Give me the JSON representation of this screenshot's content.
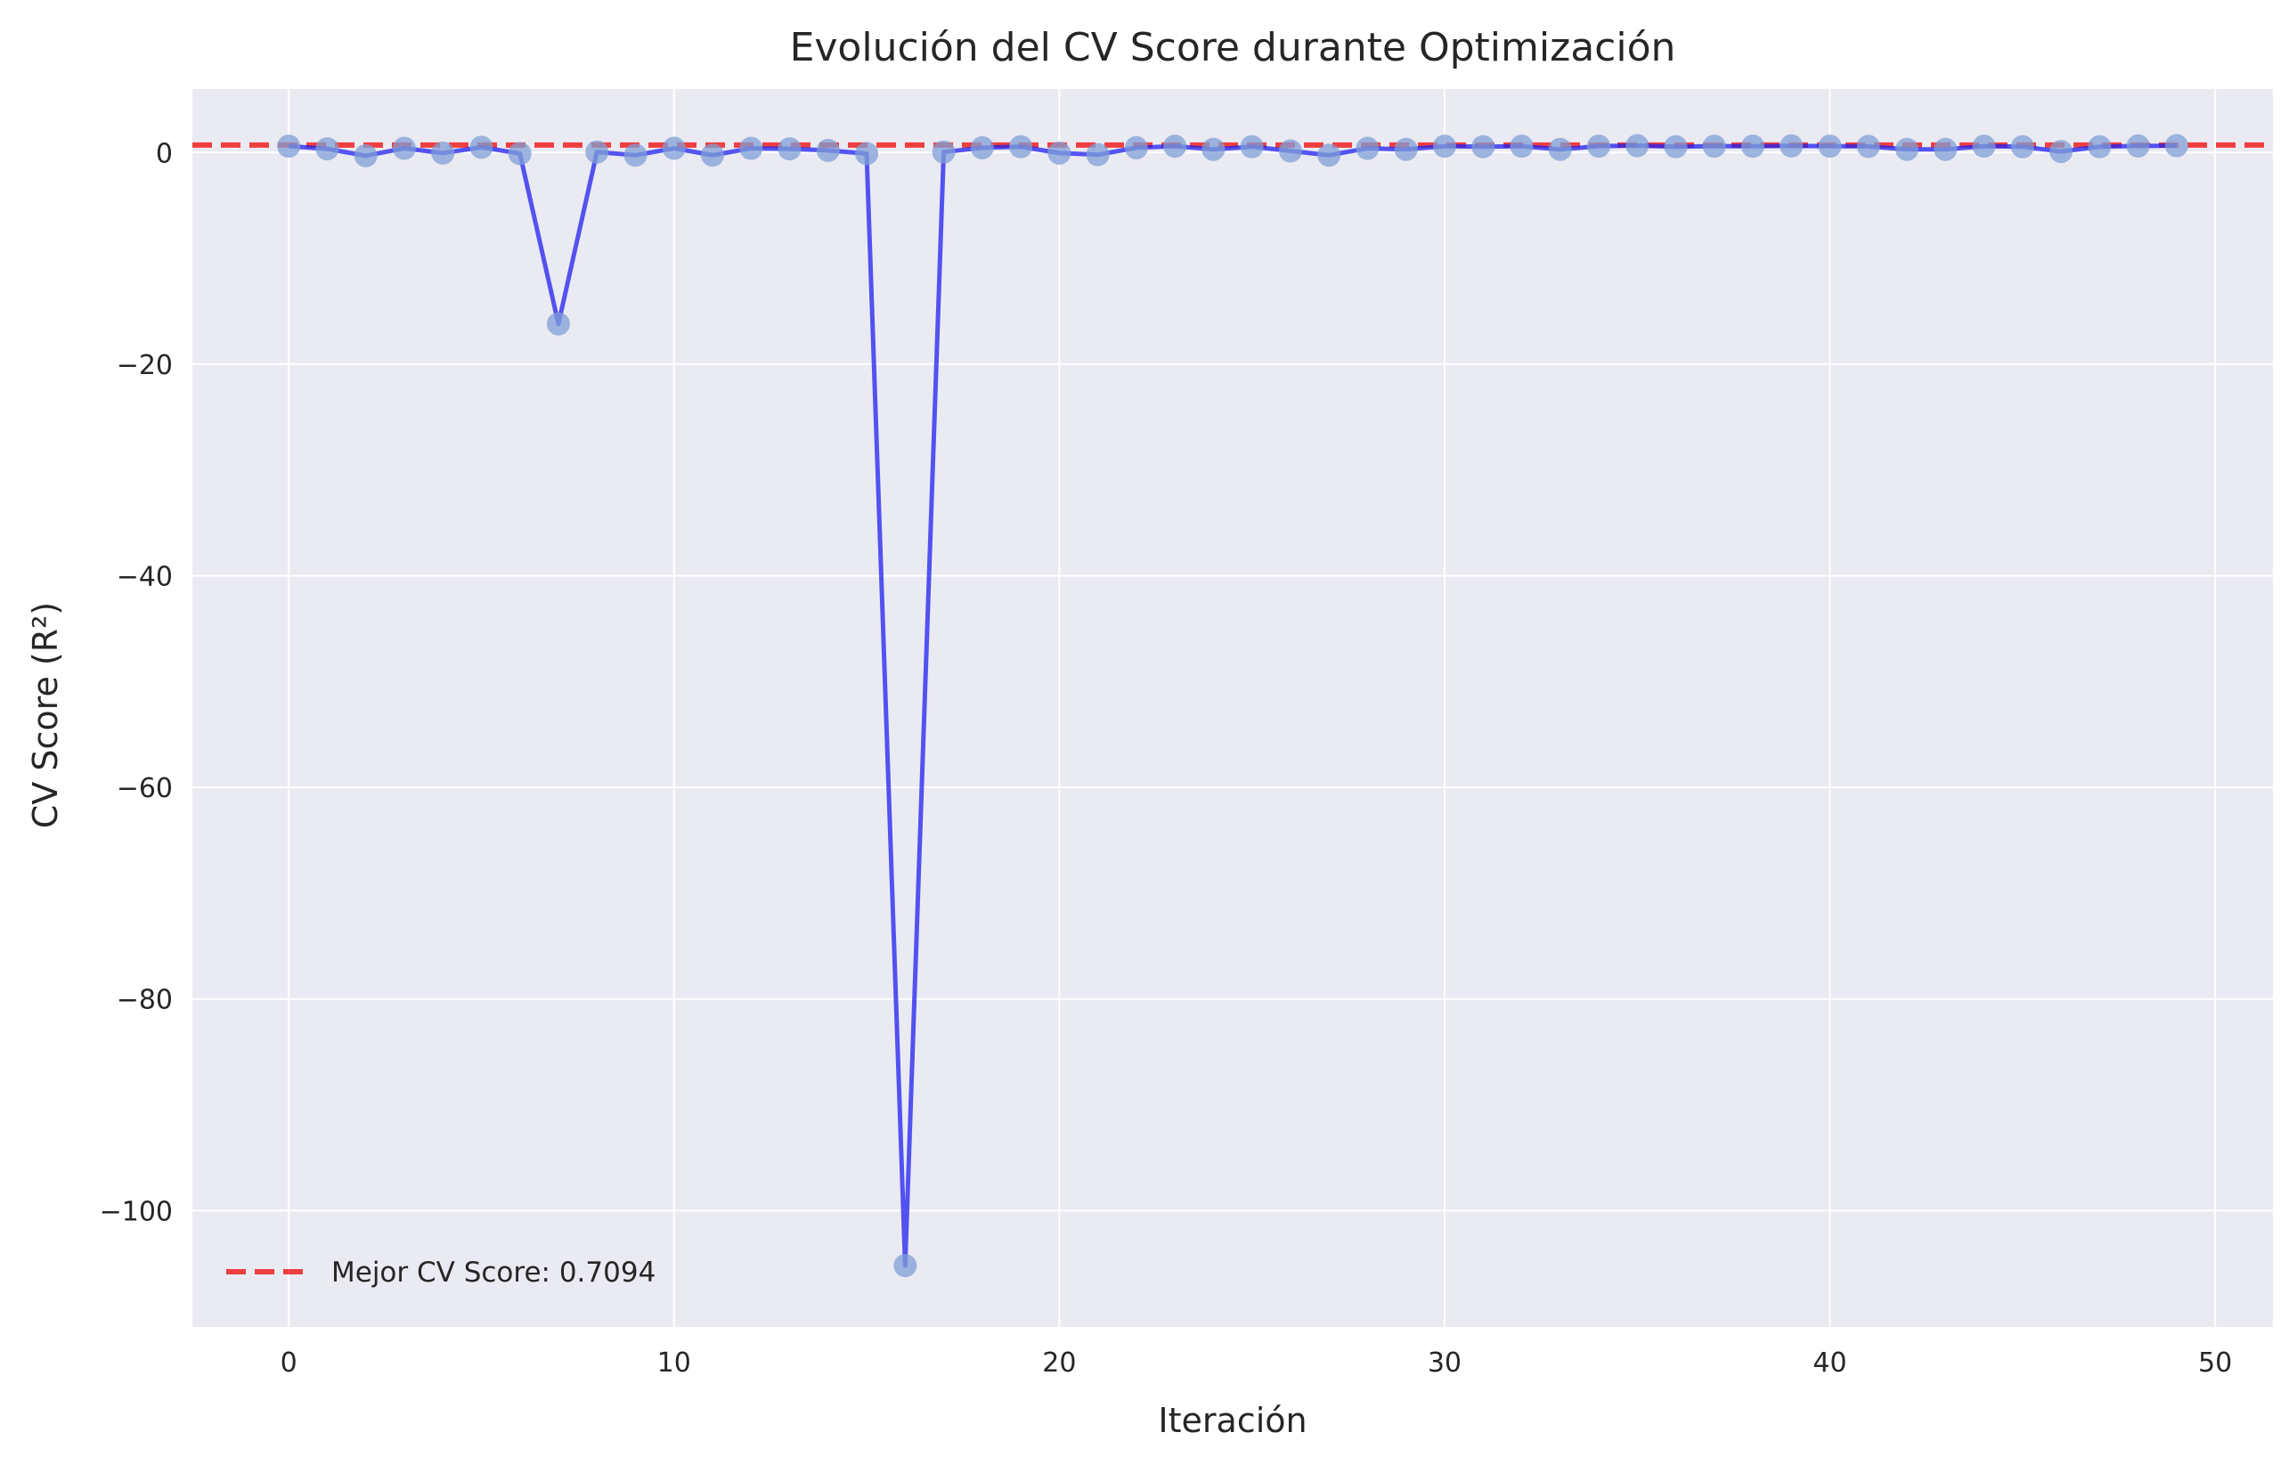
{
  "chart_data": {
    "type": "line",
    "title": "Evolución del CV Score durante Optimización",
    "xlabel": "Iteración",
    "ylabel": "CV Score (R²)",
    "xlim": [
      -2.5,
      51.5
    ],
    "ylim": [
      -111,
      6
    ],
    "xticks": [
      0,
      10,
      20,
      30,
      40,
      50
    ],
    "yticks": [
      0,
      -20,
      -40,
      -60,
      -80,
      -100
    ],
    "ytick_labels": [
      "0",
      "−20",
      "−40",
      "−60",
      "−80",
      "−100"
    ],
    "grid": true,
    "legend_position": "lower-left",
    "series": [
      {
        "line_color": "#1f1ff0",
        "marker_color": "#7f9fd6",
        "x": [
          0,
          1,
          2,
          3,
          4,
          5,
          6,
          7,
          8,
          9,
          10,
          11,
          12,
          13,
          14,
          15,
          16,
          17,
          18,
          19,
          20,
          21,
          22,
          23,
          24,
          25,
          26,
          27,
          28,
          29,
          30,
          31,
          32,
          33,
          34,
          35,
          36,
          37,
          38,
          39,
          40,
          41,
          42,
          43,
          44,
          45,
          46,
          47,
          48,
          49
        ],
        "values": [
          0.6,
          0.35,
          -0.3,
          0.4,
          -0.05,
          0.5,
          -0.1,
          -16.2,
          0.05,
          -0.25,
          0.4,
          -0.25,
          0.4,
          0.35,
          0.2,
          -0.1,
          -105.2,
          0.05,
          0.45,
          0.55,
          -0.05,
          -0.2,
          0.45,
          0.6,
          0.3,
          0.55,
          0.15,
          -0.25,
          0.4,
          0.3,
          0.6,
          0.55,
          0.6,
          0.3,
          0.6,
          0.65,
          0.55,
          0.6,
          0.6,
          0.62,
          0.6,
          0.58,
          0.3,
          0.3,
          0.6,
          0.55,
          0.1,
          0.55,
          0.62,
          0.65
        ]
      },
      {
        "name": "Mejor CV Score: 0.7094",
        "type": "hline",
        "y": 0.7094,
        "color": "#f02020",
        "style": "dashed"
      }
    ],
    "colors": {
      "plot_background": "#eaeaf2",
      "grid": "#ffffff",
      "text": "#262626"
    }
  }
}
